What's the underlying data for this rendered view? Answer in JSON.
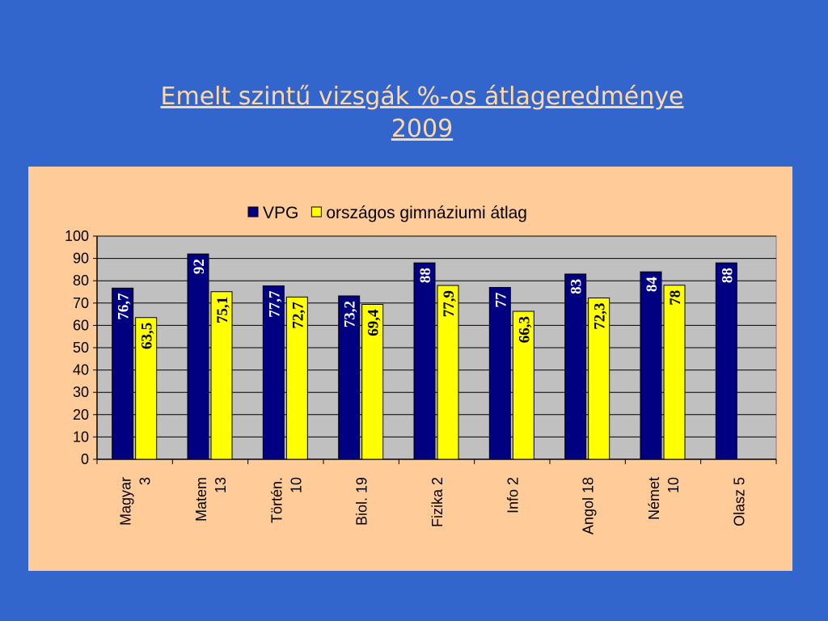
{
  "title": {
    "line1": "Emelt szintű vizsgák %-os átlageredménye",
    "line2": "2009"
  },
  "colors": {
    "background": "#3366cc",
    "panel": "#ffcc99",
    "plot": "#c0c0c0",
    "vpg": "#000080",
    "orszagos": "#ffff00",
    "title": "#ffd8a8"
  },
  "chart_data": {
    "type": "bar",
    "categories": [
      [
        "Magyar",
        "3"
      ],
      [
        "Matem",
        "13"
      ],
      [
        "Történ.",
        "10"
      ],
      [
        "Biol. 19"
      ],
      [
        "Fizika 2"
      ],
      [
        "Info 2"
      ],
      [
        "Angol 18"
      ],
      [
        "Német",
        "10"
      ],
      [
        "Olasz 5"
      ]
    ],
    "series": [
      {
        "name": "VPG",
        "values": [
          76.7,
          92,
          77.7,
          73.2,
          88,
          77,
          83,
          84,
          88
        ],
        "labels": [
          "76,7",
          "92",
          "77,7",
          "73,2",
          "88",
          "77",
          "83",
          "84",
          "88"
        ]
      },
      {
        "name": "országos gimnáziumi átlag",
        "values": [
          63.5,
          75.1,
          72.7,
          69.4,
          77.9,
          66.3,
          72.3,
          78,
          null
        ],
        "labels": [
          "63,5",
          "75,1",
          "72,7",
          "69,4",
          "77,9",
          "66,3",
          "72,3",
          "78",
          null
        ]
      }
    ],
    "yticks": [
      "0",
      "10",
      "20",
      "30",
      "40",
      "50",
      "60",
      "70",
      "80",
      "90",
      "100"
    ],
    "ylim": [
      0,
      100
    ],
    "grid": true,
    "legend": "top"
  }
}
